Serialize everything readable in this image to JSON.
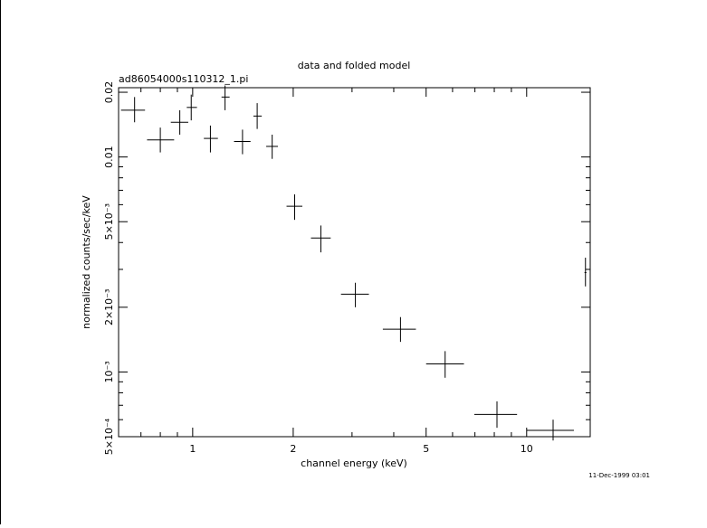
{
  "chart_data": {
    "type": "scatter",
    "title": "data and folded model",
    "subtitle": "ad86054000s110312_1.pi",
    "xlabel": "channel energy (keV)",
    "ylabel": "normalized counts/sec/keV",
    "x_scale": "log",
    "y_scale": "log",
    "xlim": [
      0.6,
      15.5
    ],
    "ylim": [
      0.0005,
      0.021
    ],
    "x_ticks": [
      {
        "value": 1,
        "label": "1"
      },
      {
        "value": 2,
        "label": "2"
      },
      {
        "value": 5,
        "label": "5"
      },
      {
        "value": 10,
        "label": "10"
      }
    ],
    "y_ticks": [
      {
        "value": 0.0005,
        "label": "5×10⁻⁴"
      },
      {
        "value": 0.001,
        "label": "10⁻³"
      },
      {
        "value": 0.002,
        "label": "2×10⁻³"
      },
      {
        "value": 0.005,
        "label": "5×10⁻³"
      },
      {
        "value": 0.01,
        "label": "0.01"
      },
      {
        "value": 0.02,
        "label": "0.02"
      }
    ],
    "timestamp": "11-Dec-1999 03:01",
    "points": [
      {
        "x": 0.67,
        "xlo": 0.61,
        "xhi": 0.72,
        "y": 0.0165,
        "ylo": 0.0145,
        "yhi": 0.019
      },
      {
        "x": 0.8,
        "xlo": 0.73,
        "xhi": 0.88,
        "y": 0.012,
        "ylo": 0.0105,
        "yhi": 0.0137
      },
      {
        "x": 0.915,
        "xlo": 0.86,
        "xhi": 0.97,
        "y": 0.0145,
        "ylo": 0.0127,
        "yhi": 0.0165
      },
      {
        "x": 0.99,
        "xlo": 0.96,
        "xhi": 1.03,
        "y": 0.017,
        "ylo": 0.0148,
        "yhi": 0.0195
      },
      {
        "x": 1.13,
        "xlo": 1.08,
        "xhi": 1.19,
        "y": 0.0122,
        "ylo": 0.0105,
        "yhi": 0.014
      },
      {
        "x": 1.25,
        "xlo": 1.22,
        "xhi": 1.29,
        "y": 0.019,
        "ylo": 0.0165,
        "yhi": 0.0215
      },
      {
        "x": 1.41,
        "xlo": 1.33,
        "xhi": 1.49,
        "y": 0.0118,
        "ylo": 0.0103,
        "yhi": 0.0134
      },
      {
        "x": 1.56,
        "xlo": 1.52,
        "xhi": 1.61,
        "y": 0.0155,
        "ylo": 0.0135,
        "yhi": 0.0178
      },
      {
        "x": 1.73,
        "xlo": 1.66,
        "xhi": 1.8,
        "y": 0.0112,
        "ylo": 0.0098,
        "yhi": 0.0127
      },
      {
        "x": 2.02,
        "xlo": 1.91,
        "xhi": 2.13,
        "y": 0.0059,
        "ylo": 0.0051,
        "yhi": 0.0067
      },
      {
        "x": 2.42,
        "xlo": 2.26,
        "xhi": 2.59,
        "y": 0.0042,
        "ylo": 0.0036,
        "yhi": 0.0048
      },
      {
        "x": 3.07,
        "xlo": 2.78,
        "xhi": 3.37,
        "y": 0.0023,
        "ylo": 0.002,
        "yhi": 0.0026
      },
      {
        "x": 4.19,
        "xlo": 3.71,
        "xhi": 4.66,
        "y": 0.00158,
        "ylo": 0.00138,
        "yhi": 0.0018
      },
      {
        "x": 5.7,
        "xlo": 5.0,
        "xhi": 6.49,
        "y": 0.00109,
        "ylo": 0.00094,
        "yhi": 0.00125
      },
      {
        "x": 8.15,
        "xlo": 6.97,
        "xhi": 9.36,
        "y": 0.000635,
        "ylo": 0.00055,
        "yhi": 0.00073
      },
      {
        "x": 12.0,
        "xlo": 10.0,
        "xhi": 13.85,
        "y": 0.000535,
        "ylo": 0.00048,
        "yhi": 0.0006
      },
      {
        "x": 15.0,
        "xlo": 14.9,
        "xhi": 15.1,
        "y": 0.0029,
        "ylo": 0.0025,
        "yhi": 0.0034
      }
    ]
  }
}
